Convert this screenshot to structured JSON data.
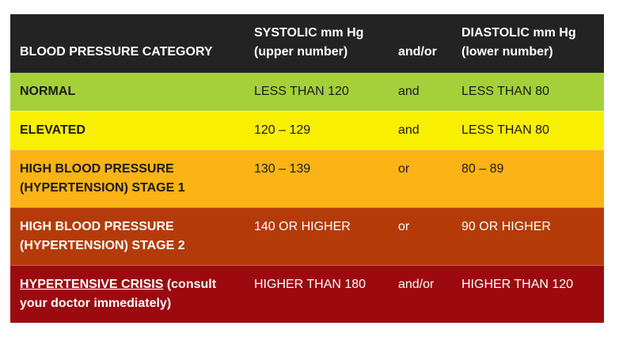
{
  "table": {
    "headers": {
      "category": "BLOOD PRESSURE CATEGORY",
      "systolic_line1": "SYSTOLIC mm Hg",
      "systolic_line2": "(upper number)",
      "conjunction": "and/or",
      "diastolic_line1": "DIASTOLIC mm Hg",
      "diastolic_line2": "(lower number)"
    },
    "rows": [
      {
        "category_line1": "NORMAL",
        "systolic": "LESS THAN 120",
        "conjunction": "and",
        "diastolic": "LESS THAN 80",
        "color": "#a5d03a"
      },
      {
        "category_line1": "ELEVATED",
        "systolic": "120 – 129",
        "conjunction": "and",
        "diastolic": "LESS THAN 80",
        "color": "#f9ef00"
      },
      {
        "category_line1": "HIGH BLOOD PRESSURE",
        "category_line2": "(HYPERTENSION) STAGE 1",
        "systolic": "130 – 139",
        "conjunction": "or",
        "diastolic": "80 – 89",
        "color": "#fcb315"
      },
      {
        "category_line1": "HIGH BLOOD PRESSURE",
        "category_line2": "(HYPERTENSION) STAGE 2",
        "systolic": "140 OR HIGHER",
        "conjunction": "or",
        "diastolic": "90 OR HIGHER",
        "color": "#b43b07"
      },
      {
        "category_link": "HYPERTENSIVE CRISIS",
        "category_suffix": " (consult",
        "category_line2": "your doctor immediately)",
        "systolic": "HIGHER THAN 180",
        "conjunction": "and/or",
        "diastolic": "HIGHER THAN 120",
        "color": "#9c0a0f"
      }
    ]
  },
  "colors": {
    "header_background": "#232323",
    "header_text": "#ffffff"
  }
}
